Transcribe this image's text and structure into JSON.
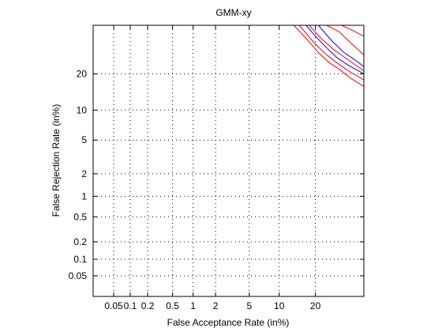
{
  "chart_data": {
    "type": "line",
    "title": "GMM-xy",
    "xlabel": "False Acceptance Rate (in%)",
    "ylabel": "False Rejection Rate (in%)",
    "x_scale": "normal-deviate",
    "y_scale": "normal-deviate",
    "xlim": [
      0.02,
      40
    ],
    "ylim": [
      0.02,
      40
    ],
    "grid": true,
    "x_ticks": [
      {
        "value": 0.05,
        "label": "0.05"
      },
      {
        "value": 0.1,
        "label": "0.1"
      },
      {
        "value": 0.2,
        "label": "0.2"
      },
      {
        "value": 0.5,
        "label": "0.5"
      },
      {
        "value": 1,
        "label": "1"
      },
      {
        "value": 2,
        "label": "2"
      },
      {
        "value": 5,
        "label": "5"
      },
      {
        "value": 10,
        "label": "10"
      },
      {
        "value": 20,
        "label": "20"
      }
    ],
    "y_ticks": [
      {
        "value": 0.05,
        "label": "0.05"
      },
      {
        "value": 0.1,
        "label": "0.1"
      },
      {
        "value": 0.2,
        "label": "0.2"
      },
      {
        "value": 0.5,
        "label": "0.5"
      },
      {
        "value": 1,
        "label": "1"
      },
      {
        "value": 2,
        "label": "2"
      },
      {
        "value": 5,
        "label": "5"
      },
      {
        "value": 10,
        "label": "10"
      },
      {
        "value": 20,
        "label": "20"
      }
    ],
    "series": [
      {
        "color": "#ff0000",
        "x": [
          13.5,
          17,
          21,
          25,
          30,
          34,
          40
        ],
        "y": [
          40,
          34,
          28,
          24,
          21,
          18.5,
          16
        ]
      },
      {
        "color": "#ff0000",
        "x": [
          15,
          19,
          23,
          28,
          33,
          40
        ],
        "y": [
          40,
          33,
          28,
          24,
          21,
          18
        ]
      },
      {
        "color": "#0000ff",
        "x": [
          17,
          20,
          24,
          28,
          33,
          40
        ],
        "y": [
          40,
          35,
          30,
          26,
          23,
          20
        ]
      },
      {
        "color": "#0000ff",
        "x": [
          21,
          26,
          31,
          36,
          40
        ],
        "y": [
          40,
          33,
          28,
          25,
          22.5
        ]
      },
      {
        "color": "#ff0000",
        "x": [
          18,
          22,
          27,
          33,
          40
        ],
        "y": [
          40,
          34,
          29,
          25,
          21
        ]
      },
      {
        "color": "#ff0000",
        "x": [
          24,
          29,
          34,
          40
        ],
        "y": [
          40,
          37,
          32,
          27
        ]
      },
      {
        "color": "#ff0000",
        "x": [
          30,
          34,
          40
        ],
        "y": [
          40,
          38,
          35
        ]
      }
    ]
  }
}
